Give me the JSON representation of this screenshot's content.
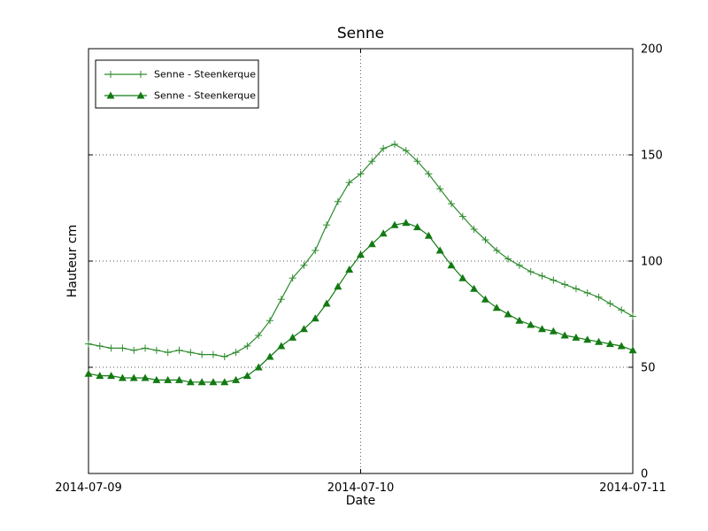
{
  "chart_data": {
    "type": "line",
    "title": "Senne",
    "xlabel": "Date",
    "ylabel": "Hauteur cm",
    "xlim": [
      0,
      48
    ],
    "ylim": [
      0,
      200
    ],
    "yticks": [
      0,
      50,
      100,
      150,
      200
    ],
    "xticks": [
      {
        "pos": 0,
        "label": "2014-07-09"
      },
      {
        "pos": 24,
        "label": "2014-07-10"
      },
      {
        "pos": 48,
        "label": "2014-07-11"
      }
    ],
    "x_unit": "hours after 2014-07-09 00:00",
    "grid": true,
    "legend_position": "upper-left",
    "series": [
      {
        "name": "Senne - Steenkerque",
        "marker": "plus",
        "color": "#2e8b2e",
        "x": [
          0,
          1,
          2,
          3,
          4,
          5,
          6,
          7,
          8,
          9,
          10,
          11,
          12,
          13,
          14,
          15,
          16,
          17,
          18,
          19,
          20,
          21,
          22,
          23,
          24,
          25,
          26,
          27,
          28,
          29,
          30,
          31,
          32,
          33,
          34,
          35,
          36,
          37,
          38,
          39,
          40,
          41,
          42,
          43,
          44,
          45,
          46,
          47,
          48
        ],
        "values": [
          61,
          60,
          59,
          59,
          58,
          59,
          58,
          57,
          58,
          57,
          56,
          56,
          55,
          57,
          60,
          65,
          72,
          82,
          92,
          98,
          105,
          117,
          128,
          137,
          141,
          147,
          153,
          155,
          152,
          147,
          141,
          134,
          127,
          121,
          115,
          110,
          105,
          101,
          98,
          95,
          93,
          91,
          89,
          87,
          85,
          83,
          80,
          77,
          74
        ]
      },
      {
        "name": "Senne - Steenkerque",
        "marker": "triangle",
        "color": "#137a13",
        "x": [
          0,
          1,
          2,
          3,
          4,
          5,
          6,
          7,
          8,
          9,
          10,
          11,
          12,
          13,
          14,
          15,
          16,
          17,
          18,
          19,
          20,
          21,
          22,
          23,
          24,
          25,
          26,
          27,
          28,
          29,
          30,
          31,
          32,
          33,
          34,
          35,
          36,
          37,
          38,
          39,
          40,
          41,
          42,
          43,
          44,
          45,
          46,
          47,
          48
        ],
        "values": [
          47,
          46,
          46,
          45,
          45,
          45,
          44,
          44,
          44,
          43,
          43,
          43,
          43,
          44,
          46,
          50,
          55,
          60,
          64,
          68,
          73,
          80,
          88,
          96,
          103,
          108,
          113,
          117,
          118,
          116,
          112,
          105,
          98,
          92,
          87,
          82,
          78,
          75,
          72,
          70,
          68,
          67,
          65,
          64,
          63,
          62,
          61,
          60,
          58
        ]
      }
    ]
  }
}
